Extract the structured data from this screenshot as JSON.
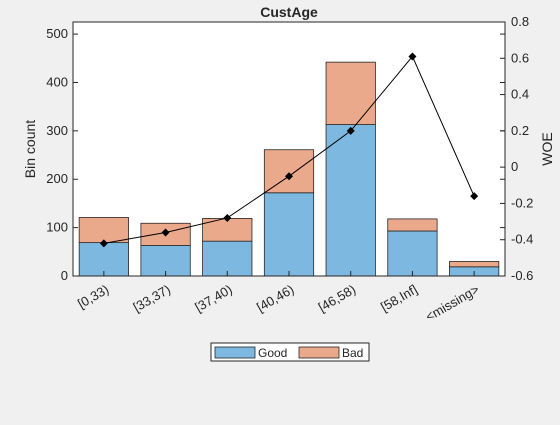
{
  "chart_data": {
    "type": "bar",
    "title": "CustAge",
    "ylabel": "Bin count",
    "y2label": "WOE",
    "categories": [
      "[0,33)",
      "[33,37)",
      "[37,40)",
      "[40,46)",
      "[46,58)",
      "[58,Inf]",
      "<missing>"
    ],
    "ylim": [
      0,
      525
    ],
    "y2lim": [
      -0.6,
      0.8
    ],
    "yticks": [
      "0",
      "100",
      "200",
      "300",
      "400",
      "500"
    ],
    "y2ticks": [
      "-0.6",
      "-0.4",
      "-0.2",
      "0",
      "0.2",
      "0.4",
      "0.6",
      "0.8"
    ],
    "stacked": true,
    "series": [
      {
        "name": "Good",
        "color": "#7db8e0",
        "values": [
          69,
          63,
          72,
          172,
          313,
          93,
          19
        ]
      },
      {
        "name": "Bad",
        "color": "#eba98b",
        "values": [
          52,
          46,
          47,
          89,
          129,
          25,
          11
        ]
      }
    ],
    "line": {
      "axis": "right",
      "color": "#000000",
      "values": [
        -0.42,
        -0.36,
        -0.28,
        -0.05,
        0.2,
        0.61,
        -0.16
      ]
    },
    "legend_position": "bottom-center",
    "grid": false
  }
}
